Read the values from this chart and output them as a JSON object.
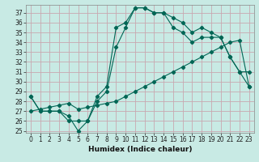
{
  "xlabel": "Humidex (Indice chaleur)",
  "background_color": "#c8eae4",
  "grid_color": "#c8a8b0",
  "line_color": "#006655",
  "xlim": [
    -0.5,
    23.5
  ],
  "ylim": [
    24.8,
    37.8
  ],
  "yticks": [
    25,
    26,
    27,
    28,
    29,
    30,
    31,
    32,
    33,
    34,
    35,
    36,
    37
  ],
  "xticks": [
    0,
    1,
    2,
    3,
    4,
    5,
    6,
    7,
    8,
    9,
    10,
    11,
    12,
    13,
    14,
    15,
    16,
    17,
    18,
    19,
    20,
    21,
    22,
    23
  ],
  "line_upper": [
    28.5,
    27.0,
    27.0,
    27.0,
    26.5,
    25.0,
    26.0,
    28.5,
    29.5,
    35.5,
    36.0,
    37.5,
    37.5,
    37.0,
    37.0,
    36.5,
    36.0,
    35.0,
    35.5,
    35.0,
    34.5,
    32.5,
    31.0,
    31.0
  ],
  "line_mid": [
    28.5,
    27.0,
    27.0,
    27.0,
    26.0,
    26.0,
    26.0,
    28.0,
    29.0,
    33.5,
    35.5,
    37.5,
    37.5,
    37.0,
    37.0,
    35.5,
    35.0,
    34.0,
    34.5,
    34.5,
    34.5,
    32.5,
    31.0,
    29.5
  ],
  "line_diag": [
    27.0,
    27.2,
    27.4,
    27.6,
    27.8,
    27.2,
    27.4,
    27.6,
    27.8,
    28.0,
    28.5,
    29.0,
    29.5,
    30.0,
    30.5,
    31.0,
    31.5,
    32.0,
    32.5,
    33.0,
    33.5,
    34.0,
    34.2,
    29.5
  ],
  "tick_fontsize": 5.5,
  "xlabel_fontsize": 6.5,
  "linewidth": 0.8,
  "markersize": 2.2
}
